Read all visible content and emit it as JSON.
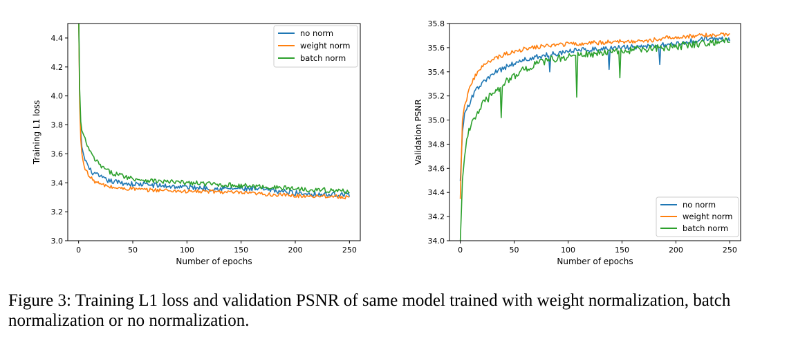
{
  "caption": {
    "label": "Figure 3:",
    "text": "Training L1 loss and validation PSNR of same model trained with weight normalization, batch normalization or no normalization."
  },
  "colors": {
    "no_norm": "#1f77b4",
    "weight_norm": "#ff7f0e",
    "batch_norm": "#2ca02c"
  },
  "chart_data": [
    {
      "type": "line",
      "title": "",
      "xlabel": "Number of epochs",
      "ylabel": "Training L1 loss",
      "xlim": [
        -10,
        260
      ],
      "ylim": [
        3.0,
        4.5
      ],
      "xticks": [
        "0",
        "50",
        "100",
        "150",
        "200",
        "250"
      ],
      "yticks": [
        "3.0",
        "3.2",
        "3.4",
        "3.6",
        "3.8",
        "4.0",
        "4.2",
        "4.4"
      ],
      "legend_position": "top-right",
      "grid": false,
      "x": [
        0,
        1,
        2,
        3,
        5,
        8,
        10,
        15,
        20,
        25,
        30,
        40,
        50,
        60,
        75,
        100,
        125,
        150,
        175,
        200,
        225,
        250
      ],
      "series": [
        {
          "name": "no norm",
          "color_key": "no_norm",
          "values": [
            4.6,
            4.0,
            3.75,
            3.65,
            3.58,
            3.53,
            3.49,
            3.46,
            3.44,
            3.42,
            3.41,
            3.4,
            3.39,
            3.39,
            3.38,
            3.37,
            3.36,
            3.36,
            3.35,
            3.33,
            3.32,
            3.32
          ]
        },
        {
          "name": "weight norm",
          "color_key": "weight_norm",
          "values": [
            4.6,
            3.95,
            3.7,
            3.6,
            3.52,
            3.47,
            3.44,
            3.41,
            3.39,
            3.38,
            3.37,
            3.36,
            3.36,
            3.35,
            3.35,
            3.34,
            3.34,
            3.33,
            3.32,
            3.31,
            3.31,
            3.3
          ]
        },
        {
          "name": "batch norm",
          "color_key": "batch_norm",
          "values": [
            4.6,
            4.05,
            3.82,
            3.76,
            3.72,
            3.66,
            3.62,
            3.56,
            3.52,
            3.49,
            3.47,
            3.45,
            3.43,
            3.42,
            3.41,
            3.4,
            3.39,
            3.38,
            3.37,
            3.36,
            3.35,
            3.34
          ]
        }
      ]
    },
    {
      "type": "line",
      "title": "",
      "xlabel": "Number of epochs",
      "ylabel": "Validation PSNR",
      "xlim": [
        -10,
        260
      ],
      "ylim": [
        34.0,
        35.8
      ],
      "xticks": [
        "0",
        "50",
        "100",
        "150",
        "200",
        "250"
      ],
      "yticks": [
        "34.0",
        "34.2",
        "34.4",
        "34.6",
        "34.8",
        "35.0",
        "35.2",
        "35.4",
        "35.6",
        "35.8"
      ],
      "legend_position": "bottom-right",
      "grid": false,
      "x": [
        0,
        2,
        4,
        6,
        8,
        10,
        15,
        20,
        30,
        40,
        50,
        60,
        75,
        100,
        125,
        150,
        175,
        200,
        225,
        250
      ],
      "series": [
        {
          "name": "no norm",
          "color_key": "no_norm",
          "values": [
            34.5,
            34.9,
            35.05,
            35.1,
            35.12,
            35.18,
            35.25,
            35.3,
            35.38,
            35.43,
            35.47,
            35.5,
            35.53,
            35.57,
            35.59,
            35.6,
            35.61,
            35.63,
            35.67,
            35.67
          ]
        },
        {
          "name": "weight norm",
          "color_key": "weight_norm",
          "values": [
            34.35,
            35.0,
            35.12,
            35.18,
            35.25,
            35.3,
            35.38,
            35.44,
            35.5,
            35.54,
            35.57,
            35.59,
            35.61,
            35.63,
            35.64,
            35.65,
            35.66,
            35.69,
            35.7,
            35.71
          ]
        },
        {
          "name": "batch norm",
          "color_key": "batch_norm",
          "values": [
            34.0,
            34.5,
            34.7,
            34.82,
            34.9,
            34.97,
            35.05,
            35.12,
            35.22,
            35.3,
            35.37,
            35.42,
            35.48,
            35.53,
            35.55,
            35.57,
            35.59,
            35.61,
            35.64,
            35.66
          ]
        }
      ],
      "dips": [
        {
          "series": "batch norm",
          "x": 38,
          "value": 35.02
        },
        {
          "series": "batch norm",
          "x": 108,
          "value": 35.19
        },
        {
          "series": "batch norm",
          "x": 148,
          "value": 35.35
        },
        {
          "series": "no norm",
          "x": 83,
          "value": 35.4
        },
        {
          "series": "no norm",
          "x": 138,
          "value": 35.42
        },
        {
          "series": "no norm",
          "x": 185,
          "value": 35.46
        }
      ]
    }
  ]
}
